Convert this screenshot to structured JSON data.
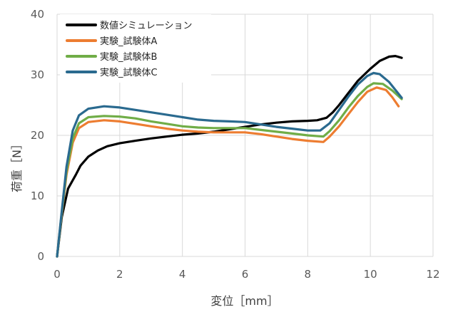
{
  "chart_data": {
    "type": "line",
    "xlabel": "変位［mm］",
    "ylabel": "荷重［N］",
    "xlim": [
      0,
      12
    ],
    "ylim": [
      0,
      40
    ],
    "x_ticks": [
      "0",
      "2",
      "4",
      "6",
      "8",
      "10",
      "12"
    ],
    "y_ticks": [
      "0",
      "10",
      "20",
      "30",
      "40"
    ],
    "grid": true,
    "legend_position": "top-left",
    "series": [
      {
        "name": "数値シミュレーション",
        "color": "#000000",
        "points": [
          [
            0,
            0
          ],
          [
            0.15,
            6.5
          ],
          [
            0.35,
            11.2
          ],
          [
            0.6,
            13.5
          ],
          [
            0.75,
            15
          ],
          [
            1,
            16.5
          ],
          [
            1.3,
            17.5
          ],
          [
            1.6,
            18.2
          ],
          [
            2,
            18.7
          ],
          [
            2.5,
            19.1
          ],
          [
            3,
            19.5
          ],
          [
            3.5,
            19.8
          ],
          [
            4,
            20.1
          ],
          [
            4.5,
            20.3
          ],
          [
            5,
            20.6
          ],
          [
            5.5,
            21
          ],
          [
            6,
            21.4
          ],
          [
            6.5,
            21.8
          ],
          [
            7,
            22.1
          ],
          [
            7.5,
            22.3
          ],
          [
            8,
            22.4
          ],
          [
            8.3,
            22.5
          ],
          [
            8.6,
            22.9
          ],
          [
            8.8,
            23.8
          ],
          [
            9,
            25
          ],
          [
            9.3,
            27
          ],
          [
            9.6,
            29
          ],
          [
            10,
            31
          ],
          [
            10.3,
            32.3
          ],
          [
            10.6,
            33
          ],
          [
            10.8,
            33.1
          ],
          [
            11,
            32.8
          ]
        ]
      },
      {
        "name": "実験_試験体A",
        "color": "#ed7d31",
        "points": [
          [
            0,
            0
          ],
          [
            0.15,
            7
          ],
          [
            0.3,
            13.5
          ],
          [
            0.5,
            18.8
          ],
          [
            0.7,
            21.2
          ],
          [
            1,
            22.2
          ],
          [
            1.5,
            22.5
          ],
          [
            2,
            22.3
          ],
          [
            2.5,
            21.9
          ],
          [
            3,
            21.5
          ],
          [
            3.5,
            21.1
          ],
          [
            4,
            20.8
          ],
          [
            4.5,
            20.6
          ],
          [
            5,
            20.5
          ],
          [
            5.5,
            20.5
          ],
          [
            6,
            20.5
          ],
          [
            6.5,
            20.2
          ],
          [
            7,
            19.8
          ],
          [
            7.5,
            19.4
          ],
          [
            8,
            19.1
          ],
          [
            8.5,
            18.9
          ],
          [
            8.7,
            19.8
          ],
          [
            9,
            21.5
          ],
          [
            9.3,
            23.5
          ],
          [
            9.6,
            25.5
          ],
          [
            9.9,
            27.2
          ],
          [
            10.2,
            27.9
          ],
          [
            10.5,
            27.5
          ],
          [
            10.7,
            26.3
          ],
          [
            10.9,
            24.8
          ]
        ]
      },
      {
        "name": "実験_試験体B",
        "color": "#70ad47",
        "points": [
          [
            0,
            0
          ],
          [
            0.15,
            7.2
          ],
          [
            0.3,
            14
          ],
          [
            0.5,
            19.5
          ],
          [
            0.7,
            22
          ],
          [
            1,
            23
          ],
          [
            1.5,
            23.2
          ],
          [
            2,
            23.1
          ],
          [
            2.5,
            22.8
          ],
          [
            3,
            22.3
          ],
          [
            3.5,
            21.9
          ],
          [
            4,
            21.5
          ],
          [
            4.5,
            21.3
          ],
          [
            5,
            21.2
          ],
          [
            5.5,
            21.2
          ],
          [
            6,
            21.2
          ],
          [
            6.5,
            20.9
          ],
          [
            7,
            20.6
          ],
          [
            7.5,
            20.3
          ],
          [
            8,
            20
          ],
          [
            8.5,
            19.8
          ],
          [
            8.7,
            20.7
          ],
          [
            9,
            22.5
          ],
          [
            9.3,
            24.6
          ],
          [
            9.6,
            26.5
          ],
          [
            9.9,
            28
          ],
          [
            10.1,
            28.6
          ],
          [
            10.4,
            28.5
          ],
          [
            10.7,
            27.4
          ],
          [
            11,
            26
          ]
        ]
      },
      {
        "name": "実験_試験体C",
        "color": "#2a6a8f",
        "points": [
          [
            0,
            0
          ],
          [
            0.15,
            7.5
          ],
          [
            0.3,
            14.8
          ],
          [
            0.5,
            20.8
          ],
          [
            0.7,
            23.3
          ],
          [
            1,
            24.4
          ],
          [
            1.5,
            24.8
          ],
          [
            2,
            24.6
          ],
          [
            2.5,
            24.2
          ],
          [
            3,
            23.8
          ],
          [
            3.5,
            23.4
          ],
          [
            4,
            23
          ],
          [
            4.5,
            22.6
          ],
          [
            5,
            22.4
          ],
          [
            5.5,
            22.3
          ],
          [
            6,
            22.2
          ],
          [
            6.5,
            21.8
          ],
          [
            7,
            21.4
          ],
          [
            7.5,
            21.1
          ],
          [
            8,
            20.8
          ],
          [
            8.4,
            20.8
          ],
          [
            8.7,
            22
          ],
          [
            9,
            24.2
          ],
          [
            9.3,
            26.4
          ],
          [
            9.6,
            28.4
          ],
          [
            9.9,
            29.8
          ],
          [
            10.1,
            30.3
          ],
          [
            10.3,
            30.1
          ],
          [
            10.6,
            28.8
          ],
          [
            11,
            26.2
          ]
        ]
      }
    ]
  }
}
